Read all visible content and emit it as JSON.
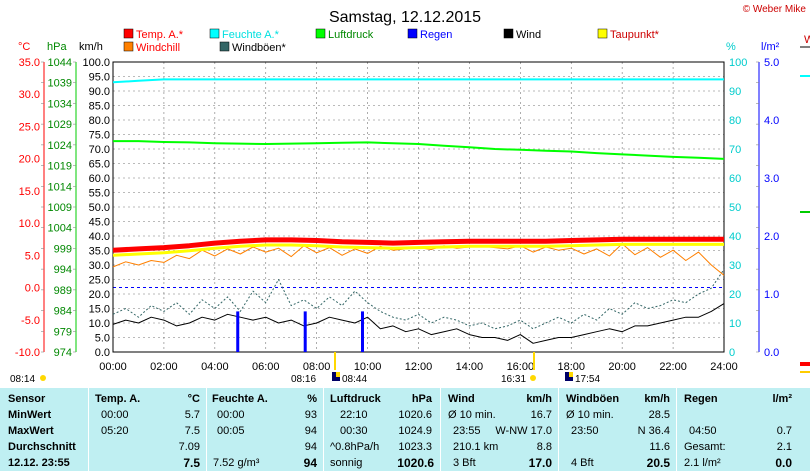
{
  "header": {
    "title": "Samstag, 12.12.2015",
    "copyright": "© Weber Mike",
    "right_edge_label": "W"
  },
  "legend": [
    {
      "label": "Temp. A.*",
      "color": "#ff0000",
      "text_color": "#ff0000"
    },
    {
      "label": "Feuchte A.*",
      "color": "#00ffff",
      "text_color": "#00e0e0"
    },
    {
      "label": "Luftdruck",
      "color": "#00ff00",
      "text_color": "#008800"
    },
    {
      "label": "Regen",
      "color": "#0000ff",
      "text_color": "#0000ff"
    },
    {
      "label": "Wind",
      "color": "#000000",
      "text_color": "#000000"
    },
    {
      "label": "Taupunkt*",
      "color": "#ffff00",
      "text_color": "#cc0000"
    },
    {
      "label": "Windchill",
      "color": "#ff8000",
      "text_color": "#ff0000"
    },
    {
      "label": "Windböen*",
      "color": "#336666",
      "text_color": "#000000"
    }
  ],
  "axes": {
    "temp": {
      "unit": "°C",
      "ticks": [
        "35.0",
        "30.0",
        "25.0",
        "20.0",
        "15.0",
        "10.0",
        "5.0",
        "0.0",
        "-5.0",
        "-10.0"
      ],
      "color": "#ff0000"
    },
    "pressure": {
      "unit": "hPa",
      "ticks": [
        "1044",
        "1039",
        "1034",
        "1029",
        "1024",
        "1019",
        "1014",
        "1009",
        "1004",
        "999",
        "994",
        "989",
        "984",
        "979",
        "974"
      ],
      "color": "#008800"
    },
    "wind": {
      "unit": "km/h",
      "ticks": [
        "100.0",
        "95.0",
        "90.0",
        "85.0",
        "80.0",
        "75.0",
        "70.0",
        "65.0",
        "60.0",
        "55.0",
        "50.0",
        "45.0",
        "40.0",
        "35.0",
        "30.0",
        "25.0",
        "20.0",
        "15.0",
        "10.0",
        "5.0",
        "0.0"
      ],
      "color": "#000000"
    },
    "humidity": {
      "unit": "%",
      "ticks": [
        "100",
        "90",
        "80",
        "70",
        "60",
        "50",
        "40",
        "30",
        "20",
        "10",
        "0"
      ],
      "color": "#00cccc"
    },
    "rain": {
      "unit": "l/m²",
      "ticks": [
        "5.0",
        "4.0",
        "3.0",
        "2.0",
        "1.0",
        "0.0"
      ],
      "color": "#0000ff"
    },
    "x": {
      "ticks": [
        "00:00",
        "02:00",
        "04:00",
        "06:00",
        "08:00",
        "10:00",
        "12:00",
        "14:00",
        "16:00",
        "18:00",
        "20:00",
        "22:00",
        "24:00"
      ]
    }
  },
  "sun_moon": {
    "sunrise_label": "08:14",
    "sunset_label": "16:31",
    "markers": [
      "08:16",
      "08:44",
      "17:54"
    ]
  },
  "chart_data": {
    "type": "line",
    "x_unit": "hours",
    "xlim": [
      0,
      24
    ],
    "series": [
      {
        "name": "Temp. A.*",
        "axis": "temp",
        "color": "#ff0000",
        "width": 5,
        "x": [
          0,
          1,
          2,
          3,
          4,
          5,
          6,
          7,
          8,
          9,
          10,
          11,
          12,
          13,
          14,
          15,
          16,
          17,
          18,
          19,
          20,
          21,
          22,
          23,
          24
        ],
        "values": [
          5.8,
          6.0,
          6.2,
          6.5,
          6.9,
          7.2,
          7.4,
          7.4,
          7.3,
          7.1,
          7.0,
          6.9,
          7.0,
          7.1,
          7.2,
          7.2,
          7.2,
          7.2,
          7.3,
          7.4,
          7.5,
          7.5,
          7.5,
          7.5,
          7.5
        ]
      },
      {
        "name": "Taupunkt*",
        "axis": "temp",
        "color": "#ffff00",
        "width": 3,
        "x": [
          0,
          1,
          2,
          3,
          4,
          5,
          6,
          7,
          8,
          9,
          10,
          11,
          12,
          13,
          14,
          15,
          16,
          17,
          18,
          19,
          20,
          21,
          22,
          23,
          24
        ],
        "values": [
          5.0,
          5.2,
          5.4,
          5.7,
          6.1,
          6.4,
          6.6,
          6.6,
          6.5,
          6.3,
          6.2,
          6.1,
          6.2,
          6.3,
          6.4,
          6.4,
          6.4,
          6.4,
          6.5,
          6.6,
          6.7,
          6.7,
          6.7,
          6.7,
          6.7
        ]
      },
      {
        "name": "Feuchte A.*",
        "axis": "humidity",
        "color": "#00ffff",
        "width": 2,
        "x": [
          0,
          1,
          2,
          4,
          6,
          8,
          10,
          12,
          14,
          16,
          18,
          20,
          22,
          24
        ],
        "values": [
          93,
          93.5,
          94,
          94,
          94,
          94,
          94,
          94,
          94,
          94,
          94,
          94,
          94,
          94
        ]
      },
      {
        "name": "Luftdruck",
        "axis": "pressure",
        "color": "#00ff00",
        "width": 2,
        "x": [
          0,
          1,
          2,
          3,
          4,
          5,
          6,
          7,
          8,
          9,
          10,
          11,
          12,
          13,
          14,
          15,
          16,
          17,
          18,
          19,
          20,
          21,
          22,
          23,
          24
        ],
        "values": [
          1024.9,
          1024.9,
          1024.7,
          1024.6,
          1024.4,
          1024.3,
          1024.2,
          1024.3,
          1024.4,
          1024.5,
          1024.6,
          1024.4,
          1024.2,
          1023.8,
          1023.4,
          1023.0,
          1022.8,
          1022.6,
          1022.4,
          1022.0,
          1021.7,
          1021.4,
          1021.1,
          1020.9,
          1020.6
        ]
      },
      {
        "name": "Windchill",
        "axis": "temp",
        "color": "#ff8000",
        "width": 1,
        "x": [
          0,
          0.5,
          1,
          1.5,
          2,
          2.5,
          3,
          3.5,
          4,
          4.5,
          5,
          5.5,
          6,
          6.5,
          7,
          7.5,
          8,
          8.5,
          9,
          9.5,
          10,
          10.5,
          11,
          11.5,
          12,
          12.5,
          13,
          13.5,
          14,
          14.5,
          15,
          15.5,
          16,
          16.5,
          17,
          17.5,
          18,
          18.5,
          19,
          19.5,
          20,
          20.5,
          21,
          21.5,
          22,
          22.5,
          23,
          23.5,
          24
        ],
        "values": [
          3.2,
          4.0,
          3.5,
          4.2,
          3.9,
          5.0,
          4.5,
          5.8,
          4.9,
          6.0,
          5.2,
          6.3,
          5.5,
          6.1,
          4.8,
          6.5,
          5.4,
          6.2,
          5.0,
          6.0,
          5.3,
          6.4,
          5.8,
          6.0,
          6.2,
          5.9,
          6.5,
          6.1,
          6.3,
          6.4,
          6.2,
          6.0,
          6.5,
          5.5,
          6.3,
          5.8,
          6.1,
          5.2,
          6.0,
          4.9,
          6.8,
          5.1,
          6.2,
          4.7,
          5.8,
          4.2,
          5.5,
          3.5,
          1.9
        ]
      },
      {
        "name": "Wind",
        "axis": "wind",
        "color": "#000000",
        "width": 1,
        "x": [
          0,
          0.5,
          1,
          1.5,
          2,
          2.5,
          3,
          3.5,
          4,
          4.5,
          5,
          5.5,
          6,
          6.5,
          7,
          7.5,
          8,
          8.5,
          9,
          9.5,
          10,
          10.5,
          11,
          11.5,
          12,
          12.5,
          13,
          13.5,
          14,
          14.5,
          15,
          15.5,
          16,
          16.5,
          17,
          17.5,
          18,
          18.5,
          19,
          19.5,
          20,
          20.5,
          21,
          21.5,
          22,
          22.5,
          23,
          23.5,
          24
        ],
        "values": [
          9.5,
          11,
          10,
          12,
          11,
          9,
          10,
          12,
          11,
          13,
          12,
          11,
          12,
          10,
          11,
          9,
          10,
          12,
          11,
          10,
          12,
          8,
          9,
          7,
          8,
          6,
          7,
          8,
          6,
          5,
          5,
          4,
          6,
          3,
          4,
          5,
          5,
          6,
          7,
          8,
          7,
          9,
          9,
          10,
          11,
          12,
          12,
          14,
          16.7
        ]
      },
      {
        "name": "Windböen*",
        "axis": "wind",
        "color": "#336666",
        "width": 1,
        "dashed": true,
        "x": [
          0,
          0.5,
          1,
          1.5,
          2,
          2.5,
          3,
          3.5,
          4,
          4.5,
          5,
          5.5,
          6,
          6.5,
          7,
          7.5,
          8,
          8.5,
          9,
          9.5,
          10,
          10.5,
          11,
          11.5,
          12,
          12.5,
          13,
          13.5,
          14,
          14.5,
          15,
          15.5,
          16,
          16.5,
          17,
          17.5,
          18,
          18.5,
          19,
          19.5,
          20,
          20.5,
          21,
          21.5,
          22,
          22.5,
          23,
          23.5,
          24
        ],
        "values": [
          13,
          15,
          12,
          16,
          14,
          17,
          13,
          18,
          15,
          19,
          14,
          21,
          17,
          25,
          16,
          18,
          15,
          19,
          16,
          21,
          17,
          14,
          12,
          11,
          13,
          10,
          12,
          11,
          9,
          10,
          8,
          9,
          11,
          8,
          10,
          12,
          10,
          13,
          11,
          15,
          13,
          17,
          15,
          16,
          18,
          17,
          20,
          22,
          28.5
        ]
      },
      {
        "name": "Regen",
        "axis": "rain",
        "type": "bars",
        "color": "#0000ff",
        "x": [
          4.9,
          7.55,
          9.8
        ],
        "values": [
          0.7,
          0.7,
          0.7
        ]
      }
    ]
  },
  "stats": {
    "row_labels": [
      "Sensor",
      "MinWert",
      "MaxWert",
      "Durchschnitt",
      "12.12. 23:55"
    ],
    "temp": {
      "header": "Temp. A.",
      "unit": "°C",
      "min_time": "00:00",
      "min": "5.7",
      "max_time": "05:20",
      "max": "7.5",
      "avg": "7.09",
      "current": "7.5"
    },
    "humidity": {
      "header": "Feuchte A.",
      "unit": "%",
      "min_time": "00:00",
      "min": "93",
      "max_time": "00:05",
      "max": "94",
      "avg": "94",
      "extra": "7.52 g/m³",
      "current": "94"
    },
    "pressure": {
      "header": "Luftdruck",
      "unit": "hPa",
      "min_time": "22:10",
      "min": "1020.6",
      "max_time": "00:30",
      "max": "1024.9",
      "trend": "^0.8hPa/h",
      "avg": "1023.3",
      "state": "sonnig",
      "current": "1020.6"
    },
    "wind": {
      "header": "Wind",
      "unit": "km/h",
      "r1_label": "Ø 10 min.",
      "r1_value": "16.7",
      "r2_time": "23:55",
      "r2_dir": "W-NW 17.0",
      "r3_label": "210.1 km",
      "r3_value": "8.8",
      "r4_label": "3 Bft",
      "current": "17.0"
    },
    "gust": {
      "header": "Windböen",
      "unit": "km/h",
      "r1_label": "Ø 10 min.",
      "r1_value": "28.5",
      "r2_time": "23:50",
      "r2_dir": "N 36.4",
      "r3_value": "11.6",
      "r4_label": "4 Bft",
      "current": "20.5"
    },
    "rain": {
      "header": "Regen",
      "unit": "l/m²",
      "r2_time": "04:50",
      "r2_value": "0.7",
      "r3_label": "Gesamt:",
      "r3_value": "2.1",
      "r4_label": "2.1 l/m²",
      "current": "0.0"
    }
  }
}
